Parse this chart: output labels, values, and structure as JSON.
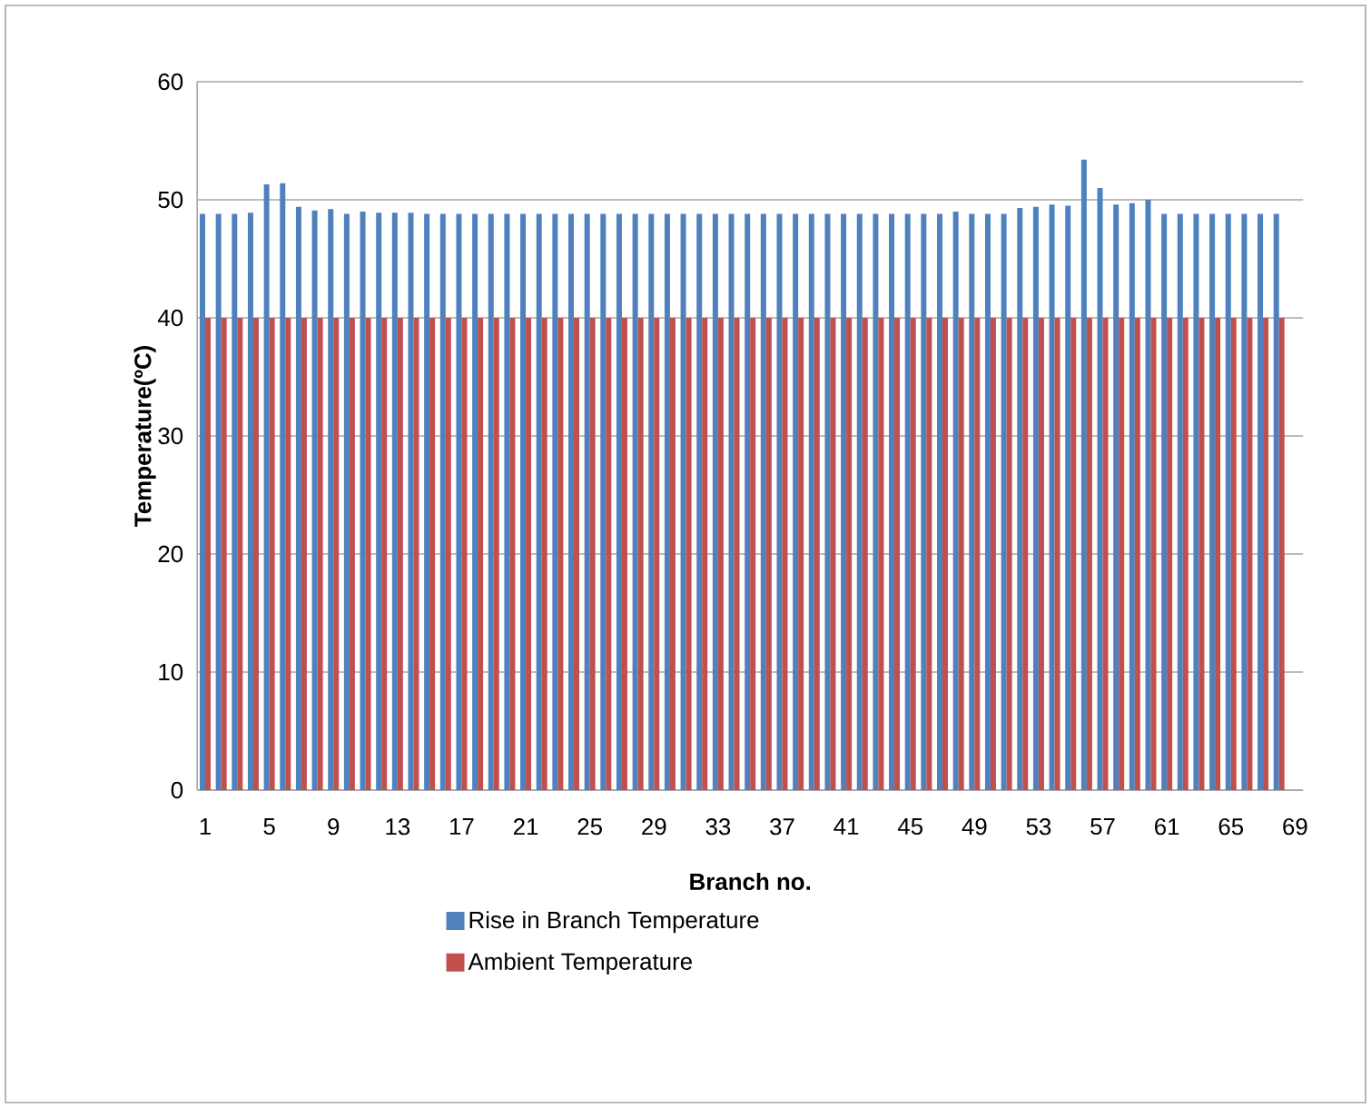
{
  "chart_data": {
    "type": "bar",
    "xlabel": "Branch no.",
    "ylabel": "Temperature(ºC)",
    "categories": [
      "1",
      null,
      null,
      null,
      "5",
      null,
      null,
      null,
      "9",
      null,
      null,
      null,
      "13",
      null,
      null,
      null,
      "17",
      null,
      null,
      null,
      "21",
      null,
      null,
      null,
      "25",
      null,
      null,
      null,
      "29",
      null,
      null,
      null,
      "33",
      null,
      null,
      null,
      "37",
      null,
      null,
      null,
      "41",
      null,
      null,
      null,
      "45",
      null,
      null,
      null,
      "49",
      null,
      null,
      null,
      "53",
      null,
      null,
      null,
      "57",
      null,
      null,
      null,
      "61",
      null,
      null,
      null,
      "65",
      null,
      null,
      null,
      "69"
    ],
    "series": [
      {
        "name": "Rise in Branch Temperature",
        "color": "#4f81bd",
        "values": [
          48.8,
          48.8,
          48.8,
          48.9,
          51.3,
          51.4,
          49.4,
          49.1,
          49.2,
          48.8,
          49.0,
          48.9,
          48.9,
          48.9,
          48.8,
          48.8,
          48.8,
          48.8,
          48.8,
          48.8,
          48.8,
          48.8,
          48.8,
          48.8,
          48.8,
          48.8,
          48.8,
          48.8,
          48.8,
          48.8,
          48.8,
          48.8,
          48.8,
          48.8,
          48.8,
          48.8,
          48.8,
          48.8,
          48.8,
          48.8,
          48.8,
          48.8,
          48.8,
          48.8,
          48.8,
          48.8,
          48.8,
          49.0,
          48.8,
          48.8,
          48.8,
          49.3,
          49.4,
          49.6,
          49.5,
          53.4,
          51.0,
          49.6,
          49.7,
          50.0,
          48.8,
          48.8,
          48.8,
          48.8,
          48.8,
          48.8,
          48.8,
          48.8,
          null
        ]
      },
      {
        "name": "Ambient Temperature",
        "color": "#c0504d",
        "values": [
          40,
          40,
          40,
          40,
          40,
          40,
          40,
          40,
          40,
          40,
          40,
          40,
          40,
          40,
          40,
          40,
          40,
          40,
          40,
          40,
          40,
          40,
          40,
          40,
          40,
          40,
          40,
          40,
          40,
          40,
          40,
          40,
          40,
          40,
          40,
          40,
          40,
          40,
          40,
          40,
          40,
          40,
          40,
          40,
          40,
          40,
          40,
          40,
          40,
          40,
          40,
          40,
          40,
          40,
          40,
          40,
          40,
          40,
          40,
          40,
          40,
          40,
          40,
          40,
          40,
          40,
          40,
          40,
          null
        ]
      }
    ],
    "ylim": [
      0,
      60
    ],
    "yticks": [
      0,
      10,
      20,
      30,
      40,
      50,
      60
    ],
    "grid": "y",
    "legend": "bottom"
  }
}
